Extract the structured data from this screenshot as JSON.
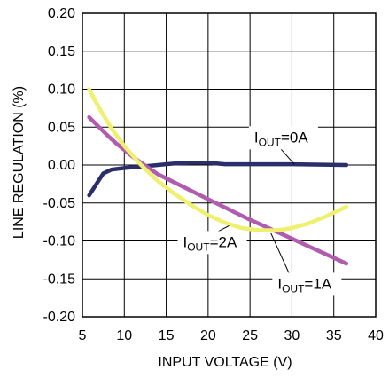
{
  "chart_data": {
    "type": "line",
    "title": "",
    "xlabel": "INPUT VOLTAGE (V)",
    "ylabel": "LINE REGULATION  (%)",
    "xlim": [
      5,
      40
    ],
    "ylim": [
      -0.2,
      0.2
    ],
    "x_ticks": [
      5,
      10,
      15,
      20,
      25,
      30,
      35,
      40
    ],
    "x_tick_labels": [
      "5",
      "10",
      "15",
      "20",
      "25",
      "30",
      "35",
      "40"
    ],
    "y_ticks": [
      0.2,
      0.15,
      0.1,
      0.05,
      0.0,
      -0.05,
      -0.1,
      -0.15,
      -0.2
    ],
    "y_tick_labels": [
      "0.20",
      "0.15",
      "0.10",
      "0.05",
      "0.00",
      "-0.05",
      "-0.10",
      "-0.15",
      "-0.20"
    ],
    "grid": true,
    "series": [
      {
        "name": "IOUT=0A",
        "color": "#2a2f6b",
        "x": [
          5.8,
          6.5,
          7.5,
          8.5,
          10,
          12,
          14,
          16,
          18,
          20,
          21,
          22,
          25,
          30,
          36.5
        ],
        "y": [
          -0.04,
          -0.028,
          -0.011,
          -0.006,
          -0.004,
          -0.002,
          0.0,
          0.002,
          0.003,
          0.003,
          0.002,
          0.001,
          0.001,
          0.001,
          0.0
        ]
      },
      {
        "name": "IOUT=1A",
        "color": "#b05db0",
        "x": [
          5.8,
          7,
          8,
          9,
          10,
          11,
          12,
          14,
          16,
          20,
          25,
          30,
          36.5
        ],
        "y": [
          0.063,
          0.05,
          0.039,
          0.029,
          0.02,
          0.011,
          0.003,
          -0.012,
          -0.023,
          -0.045,
          -0.072,
          -0.097,
          -0.13
        ]
      },
      {
        "name": "IOUT=2A",
        "color": "#eef06e",
        "x": [
          5.8,
          6.5,
          7.5,
          8.5,
          10,
          12,
          14,
          16,
          18,
          20,
          22,
          24,
          26,
          28,
          29,
          30,
          32,
          34,
          36.5
        ],
        "y": [
          0.1,
          0.085,
          0.066,
          0.048,
          0.025,
          0.0,
          -0.021,
          -0.038,
          -0.053,
          -0.066,
          -0.076,
          -0.083,
          -0.086,
          -0.086,
          -0.085,
          -0.083,
          -0.077,
          -0.068,
          -0.055
        ]
      }
    ],
    "annotations": [
      {
        "main": "I",
        "sub": "OUT",
        "rest": "=0A",
        "x": 25.5,
        "y": 0.03,
        "point_x": 30.3,
        "point_y": 0.001
      },
      {
        "main": "I",
        "sub": "OUT",
        "rest": "=2A",
        "x": 17,
        "y": -0.108,
        "point_x": 22.5,
        "point_y": -0.08
      },
      {
        "main": "I",
        "sub": "OUT",
        "rest": "=1A",
        "x": 28.3,
        "y": -0.163,
        "point_x": 27.5,
        "point_y": -0.09
      }
    ]
  }
}
